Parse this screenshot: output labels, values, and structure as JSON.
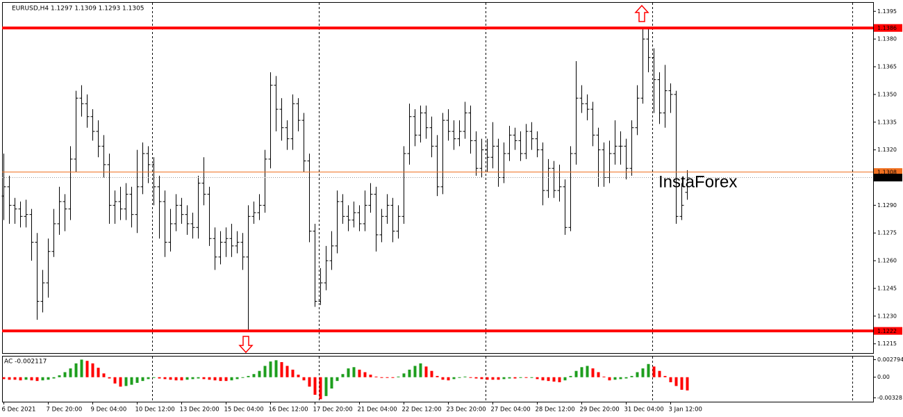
{
  "chart_data": [
    {
      "type": "ohlc",
      "title": "EURUSD,H4  1.1297 1.1309 1.1293 1.1305",
      "color": "#000000",
      "open": [
        1.1295,
        1.13,
        1.129,
        1.1288,
        1.1284,
        1.1285,
        1.127,
        1.1238,
        1.1248,
        1.1265,
        1.128,
        1.1292,
        1.1288,
        1.1315,
        1.1348,
        1.1345,
        1.1338,
        1.133,
        1.1322,
        1.1312,
        1.129,
        1.1292,
        1.1288,
        1.1296,
        1.1285,
        1.13,
        1.1318,
        1.1312,
        1.13,
        1.1292,
        1.127,
        1.128,
        1.129,
        1.1285,
        1.128,
        1.1278,
        1.1302,
        1.1296,
        1.1272,
        1.1262,
        1.127,
        1.1272,
        1.1268,
        1.127,
        1.1262,
        1.1284,
        1.1286,
        1.129,
        1.1315,
        1.1355,
        1.1342,
        1.1332,
        1.1326,
        1.1345,
        1.1336,
        1.1314,
        1.1276,
        1.1238,
        1.1248,
        1.126,
        1.1268,
        1.1292,
        1.1284,
        1.1282,
        1.1286,
        1.128,
        1.129,
        1.1296,
        1.1274,
        1.1284,
        1.129,
        1.1276,
        1.1284,
        1.1318,
        1.1338,
        1.1328,
        1.134,
        1.1332,
        1.1322,
        1.13,
        1.1336,
        1.133,
        1.1326,
        1.133,
        1.134,
        1.1325,
        1.131,
        1.132,
        1.1316,
        1.1322,
        1.1305,
        1.1318,
        1.1328,
        1.1325,
        1.1318,
        1.133,
        1.1326,
        1.132,
        1.1298,
        1.131,
        1.1298,
        1.13,
        1.1278,
        1.1318,
        1.1348,
        1.1345,
        1.1342,
        1.1328,
        1.132,
        1.1305,
        1.1318,
        1.1322,
        1.1322,
        1.131,
        1.1332,
        1.1348,
        1.138,
        1.137,
        1.1358,
        1.134,
        1.1352,
        1.135,
        1.1284,
        1.1297
      ],
      "high": [
        1.1318,
        1.1306,
        1.1294,
        1.1292,
        1.1293,
        1.1288,
        1.1275,
        1.1255,
        1.1272,
        1.1288,
        1.13,
        1.1296,
        1.1322,
        1.1352,
        1.1355,
        1.135,
        1.1342,
        1.1336,
        1.1328,
        1.1318,
        1.1298,
        1.13,
        1.1302,
        1.13,
        1.132,
        1.1324,
        1.1322,
        1.1316,
        1.1306,
        1.1298,
        1.1288,
        1.1296,
        1.1294,
        1.129,
        1.1286,
        1.1306,
        1.1316,
        1.13,
        1.1278,
        1.1276,
        1.1278,
        1.128,
        1.1276,
        1.1275,
        1.129,
        1.1292,
        1.1296,
        1.132,
        1.1362,
        1.136,
        1.1348,
        1.1336,
        1.135,
        1.1348,
        1.134,
        1.1318,
        1.128,
        1.1256,
        1.1268,
        1.1276,
        1.1298,
        1.1296,
        1.129,
        1.1292,
        1.129,
        1.1298,
        1.1302,
        1.13,
        1.1288,
        1.1296,
        1.1294,
        1.129,
        1.1322,
        1.1345,
        1.1342,
        1.1344,
        1.1344,
        1.1338,
        1.1328,
        1.134,
        1.1342,
        1.1336,
        1.1336,
        1.1346,
        1.1344,
        1.133,
        1.1326,
        1.1326,
        1.1335,
        1.1326,
        1.1324,
        1.1333,
        1.1332,
        1.133,
        1.1334,
        1.1335,
        1.133,
        1.1324,
        1.1315,
        1.1314,
        1.1312,
        1.1304,
        1.1322,
        1.1368,
        1.1355,
        1.135,
        1.1346,
        1.1332,
        1.1324,
        1.1325,
        1.1336,
        1.133,
        1.1326,
        1.1336,
        1.1355,
        1.1386,
        1.1386,
        1.1375,
        1.1362,
        1.1366,
        1.1356,
        1.1352,
        1.1302,
        1.1309
      ],
      "low": [
        1.1282,
        1.128,
        1.128,
        1.1278,
        1.1278,
        1.126,
        1.1228,
        1.1232,
        1.124,
        1.1262,
        1.1274,
        1.1276,
        1.1282,
        1.1308,
        1.1338,
        1.1332,
        1.1325,
        1.1316,
        1.1305,
        1.128,
        1.128,
        1.1282,
        1.1282,
        1.1278,
        1.1275,
        1.1296,
        1.1302,
        1.129,
        1.1272,
        1.1262,
        1.1265,
        1.1276,
        1.128,
        1.1274,
        1.1272,
        1.1272,
        1.129,
        1.1268,
        1.1255,
        1.1258,
        1.1262,
        1.1262,
        1.1264,
        1.1255,
        1.1222,
        1.128,
        1.1282,
        1.1286,
        1.131,
        1.133,
        1.1325,
        1.132,
        1.132,
        1.133,
        1.1308,
        1.127,
        1.1235,
        1.1236,
        1.1244,
        1.1255,
        1.1264,
        1.128,
        1.1276,
        1.1278,
        1.1276,
        1.1276,
        1.1286,
        1.1265,
        1.127,
        1.128,
        1.127,
        1.1272,
        1.128,
        1.1312,
        1.1322,
        1.1324,
        1.1326,
        1.1316,
        1.1295,
        1.1296,
        1.1325,
        1.132,
        1.1322,
        1.1326,
        1.1318,
        1.1306,
        1.1305,
        1.1308,
        1.131,
        1.13,
        1.1302,
        1.1314,
        1.132,
        1.1314,
        1.1315,
        1.132,
        1.1316,
        1.129,
        1.1294,
        1.1294,
        1.1292,
        1.1274,
        1.1276,
        1.1312,
        1.134,
        1.1336,
        1.1322,
        1.13,
        1.13,
        1.1302,
        1.1312,
        1.1312,
        1.1304,
        1.1306,
        1.1328,
        1.1345,
        1.1362,
        1.134,
        1.1334,
        1.1332,
        1.134,
        1.128,
        1.1282,
        1.1293
      ],
      "close": [
        1.13,
        1.129,
        1.1288,
        1.1284,
        1.1285,
        1.127,
        1.1238,
        1.1248,
        1.1265,
        1.128,
        1.1292,
        1.1288,
        1.1315,
        1.1348,
        1.1345,
        1.1338,
        1.133,
        1.1322,
        1.1312,
        1.129,
        1.1292,
        1.1288,
        1.1296,
        1.1285,
        1.13,
        1.1318,
        1.1312,
        1.13,
        1.1292,
        1.127,
        1.128,
        1.129,
        1.1285,
        1.128,
        1.1278,
        1.1302,
        1.1296,
        1.1272,
        1.1262,
        1.127,
        1.1272,
        1.1268,
        1.127,
        1.1262,
        1.1284,
        1.1286,
        1.129,
        1.1315,
        1.1355,
        1.1342,
        1.1332,
        1.1326,
        1.1345,
        1.1336,
        1.1314,
        1.1276,
        1.1238,
        1.1248,
        1.126,
        1.1268,
        1.1292,
        1.1284,
        1.1282,
        1.1286,
        1.128,
        1.129,
        1.1296,
        1.1274,
        1.1284,
        1.129,
        1.1276,
        1.1284,
        1.1318,
        1.1338,
        1.1328,
        1.134,
        1.1332,
        1.1322,
        1.13,
        1.1336,
        1.133,
        1.1326,
        1.133,
        1.134,
        1.1325,
        1.131,
        1.132,
        1.1316,
        1.1322,
        1.1305,
        1.1318,
        1.1328,
        1.1325,
        1.1318,
        1.133,
        1.1326,
        1.132,
        1.1298,
        1.131,
        1.1298,
        1.13,
        1.1278,
        1.1318,
        1.1348,
        1.1345,
        1.1342,
        1.1328,
        1.132,
        1.1305,
        1.1318,
        1.1322,
        1.1322,
        1.131,
        1.1332,
        1.1348,
        1.138,
        1.137,
        1.1358,
        1.134,
        1.1352,
        1.135,
        1.1284,
        1.129,
        1.1305
      ],
      "ylim": [
        1.121,
        1.14
      ],
      "yticks": [
        1.1395,
        {
          "value": 1.138,
          "label": "1.1380"
        },
        1.1365,
        {
          "value": 1.135,
          "label": "1.1350"
        },
        1.1335,
        {
          "value": 1.132,
          "label": "1.1320"
        },
        {
          "value": 1.129,
          "label": "1.1290"
        },
        1.1275,
        {
          "value": 1.126,
          "label": "1.1260"
        },
        1.1245,
        {
          "value": 1.123,
          "label": "1.1230"
        },
        1.1215
      ],
      "xticks": [
        {
          "value": 0,
          "label": "6 Dec 2021"
        },
        {
          "value": 8,
          "label": "7 Dec 20:00"
        },
        {
          "value": 16,
          "label": "9 Dec 04:00"
        },
        {
          "value": 24,
          "label": "10 Dec 12:00"
        },
        {
          "value": 32,
          "label": "13 Dec 20:00"
        },
        {
          "value": 40,
          "label": "15 Dec 04:00"
        },
        {
          "value": 48,
          "label": "16 Dec 12:00"
        },
        {
          "value": 56,
          "label": "17 Dec 20:00"
        },
        {
          "value": 64,
          "label": "21 Dec 04:00"
        },
        {
          "value": 72,
          "label": "22 Dec 12:00"
        },
        {
          "value": 80,
          "label": "23 Dec 20:00"
        },
        {
          "value": 88,
          "label": "27 Dec 04:00"
        },
        {
          "value": 96,
          "label": "28 Dec 12:00"
        },
        {
          "value": 104,
          "label": "29 Dec 20:00"
        },
        {
          "value": 112,
          "label": "31 Dec 04:00"
        },
        {
          "value": 120,
          "label": "3 Jan 12:00"
        }
      ],
      "levels": [
        {
          "value": 1.1386,
          "color": "#ff0000",
          "style": "thick"
        },
        {
          "value": 1.1308,
          "color": "#f07020",
          "style": "thin"
        },
        {
          "value": 1.1305,
          "color": "#000000",
          "style": "dotted"
        },
        {
          "value": 1.1222,
          "color": "#ff0000",
          "style": "thick"
        }
      ],
      "annotations": [
        {
          "text": "InstaForex",
          "color": "#ff0000"
        }
      ]
    },
    {
      "type": "bar",
      "title": "AC -0.002117",
      "up_color": "#1e9e1e",
      "down_color": "#ff0000",
      "values": [
        -0.0003,
        -0.0004,
        -0.0004,
        -0.0005,
        -0.0004,
        -0.0005,
        -0.0006,
        -0.0005,
        -0.0004,
        -0.0002,
        0.0003,
        0.0008,
        0.0014,
        0.0022,
        0.0028,
        0.0026,
        0.0022,
        0.0015,
        0.0006,
        -0.0002,
        -0.001,
        -0.0015,
        -0.0014,
        -0.0012,
        -0.0009,
        -0.0006,
        -0.0003,
        -0.0001,
        -0.0002,
        -0.0003,
        -0.0004,
        -0.0005,
        -0.0005,
        -0.0004,
        -0.0003,
        -0.0002,
        -0.0003,
        -0.0004,
        -0.0005,
        -0.0006,
        -0.0006,
        -0.0005,
        -0.0003,
        -0.0001,
        0.0002,
        0.0005,
        0.001,
        0.0018,
        0.0025,
        0.0027,
        0.0024,
        0.0018,
        0.0012,
        0.0004,
        -0.0005,
        -0.0015,
        -0.0028,
        -0.0035,
        -0.003,
        -0.0018,
        -0.0006,
        0.0005,
        0.0014,
        0.0016,
        0.0012,
        0.0008,
        0.0004,
        0.0001,
        0,
        0,
        -0.0001,
        0.0001,
        0.0006,
        0.0012,
        0.0018,
        0.0022,
        0.0017,
        0.001,
        0.0002,
        -0.0004,
        -0.0005,
        -0.0003,
        -0.0001,
        0.0001,
        0,
        -0.0002,
        -0.0003,
        -0.0004,
        -0.0004,
        -0.0004,
        -0.0003,
        -0.0002,
        -0.0002,
        -0.0001,
        -0.0001,
        0,
        -0.0003,
        -0.0005,
        -0.0006,
        -0.0007,
        -0.0008,
        -0.0005,
        0.0002,
        0.001,
        0.0016,
        0.0018,
        0.0014,
        0.0008,
        0.0001,
        -0.0005,
        -0.0004,
        -0.0003,
        -0.0002,
        0.0002,
        0.0008,
        0.0014,
        0.0021,
        0.0017,
        0.001,
        0.0002,
        -0.0008,
        -0.0014,
        -0.002,
        -0.0021
      ],
      "ylim": [
        -0.0039,
        0.0034
      ],
      "yticks": [
        0.002794,
        {
          "value": 0,
          "label": "0.00"
        },
        -0.00328
      ]
    }
  ]
}
